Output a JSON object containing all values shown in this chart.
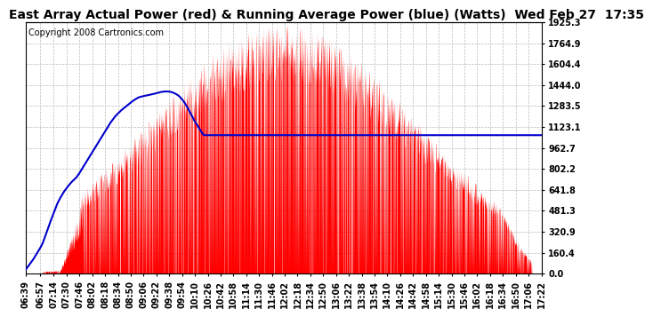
{
  "title": "East Array Actual Power (red) & Running Average Power (blue) (Watts)  Wed Feb 27  17:35",
  "copyright": "Copyright 2008 Cartronics.com",
  "yticks": [
    0.0,
    160.4,
    320.9,
    481.3,
    641.8,
    802.2,
    962.7,
    1123.1,
    1283.5,
    1444.0,
    1604.4,
    1764.9,
    1925.3
  ],
  "ymax": 1925.3,
  "ymin": 0.0,
  "background_color": "#ffffff",
  "plot_bg_color": "#ffffff",
  "grid_color": "#bbbbbb",
  "title_color": "#000000",
  "title_fontsize": 10,
  "copyright_fontsize": 7,
  "tick_fontsize": 7,
  "red_color": "#ff0000",
  "blue_color": "#0000cc",
  "xtick_labels": [
    "06:39",
    "06:57",
    "07:14",
    "07:30",
    "07:46",
    "08:02",
    "08:18",
    "08:34",
    "08:50",
    "09:06",
    "09:22",
    "09:38",
    "09:54",
    "10:10",
    "10:26",
    "10:42",
    "10:58",
    "11:14",
    "11:30",
    "11:46",
    "12:02",
    "12:18",
    "12:34",
    "12:50",
    "13:06",
    "13:22",
    "13:38",
    "13:54",
    "14:10",
    "14:26",
    "14:42",
    "14:58",
    "15:14",
    "15:30",
    "15:46",
    "16:02",
    "16:18",
    "16:34",
    "16:50",
    "17:06",
    "17:22"
  ],
  "blue_avg_points": [
    [
      399,
      30
    ],
    [
      402,
      55
    ],
    [
      405,
      80
    ],
    [
      408,
      105
    ],
    [
      411,
      135
    ],
    [
      414,
      165
    ],
    [
      417,
      195
    ],
    [
      420,
      230
    ],
    [
      423,
      280
    ],
    [
      426,
      330
    ],
    [
      429,
      385
    ],
    [
      432,
      435
    ],
    [
      435,
      480
    ],
    [
      438,
      530
    ],
    [
      441,
      568
    ],
    [
      444,
      600
    ],
    [
      447,
      630
    ],
    [
      450,
      655
    ],
    [
      453,
      678
    ],
    [
      456,
      700
    ],
    [
      459,
      718
    ],
    [
      462,
      735
    ],
    [
      465,
      760
    ],
    [
      468,
      790
    ],
    [
      471,
      820
    ],
    [
      474,
      850
    ],
    [
      477,
      880
    ],
    [
      480,
      910
    ],
    [
      483,
      940
    ],
    [
      486,
      970
    ],
    [
      489,
      1000
    ],
    [
      492,
      1030
    ],
    [
      495,
      1060
    ],
    [
      498,
      1090
    ],
    [
      501,
      1120
    ],
    [
      504,
      1150
    ],
    [
      507,
      1175
    ],
    [
      510,
      1200
    ],
    [
      513,
      1220
    ],
    [
      516,
      1238
    ],
    [
      519,
      1255
    ],
    [
      522,
      1270
    ],
    [
      525,
      1285
    ],
    [
      528,
      1300
    ],
    [
      531,
      1315
    ],
    [
      534,
      1328
    ],
    [
      537,
      1340
    ],
    [
      540,
      1350
    ],
    [
      543,
      1355
    ],
    [
      546,
      1360
    ],
    [
      549,
      1363
    ],
    [
      552,
      1367
    ],
    [
      555,
      1371
    ],
    [
      558,
      1375
    ],
    [
      561,
      1380
    ],
    [
      564,
      1385
    ],
    [
      567,
      1390
    ],
    [
      570,
      1393
    ],
    [
      573,
      1395
    ],
    [
      576,
      1395
    ],
    [
      579,
      1393
    ],
    [
      582,
      1388
    ],
    [
      585,
      1380
    ],
    [
      588,
      1370
    ],
    [
      591,
      1355
    ],
    [
      594,
      1335
    ],
    [
      597,
      1310
    ],
    [
      600,
      1280
    ],
    [
      603,
      1245
    ],
    [
      606,
      1210
    ],
    [
      609,
      1175
    ],
    [
      612,
      1145
    ],
    [
      615,
      1115
    ],
    [
      618,
      1085
    ],
    [
      621,
      1060
    ]
  ]
}
